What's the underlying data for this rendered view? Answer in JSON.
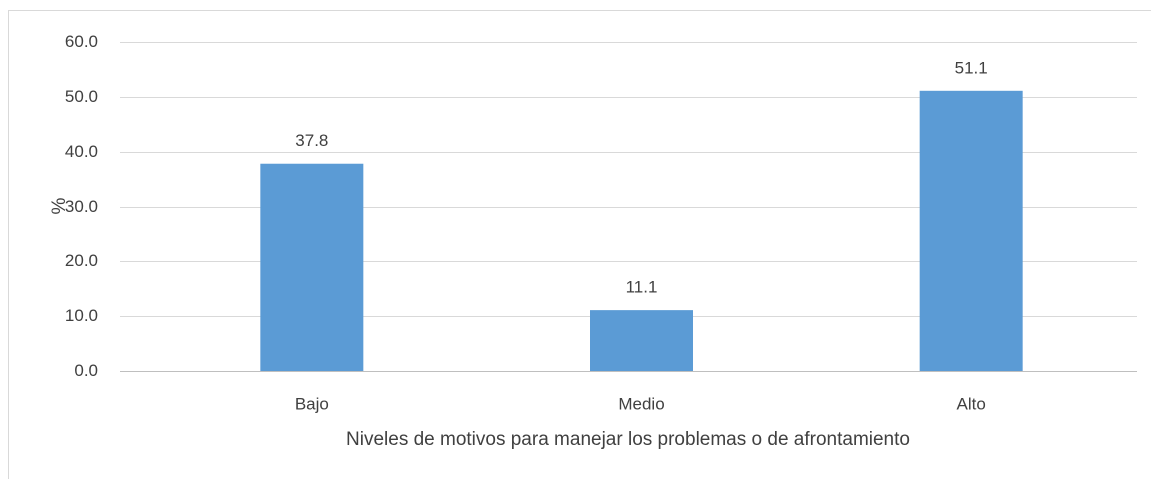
{
  "chart_data": {
    "type": "bar",
    "categories": [
      "Bajo",
      "Medio",
      "Alto"
    ],
    "values": [
      37.8,
      11.1,
      51.1
    ],
    "color": "#5b9bd5",
    "xlabel": "Niveles de motivos para manejar los problemas o de afrontamiento",
    "ylabel": "%",
    "ylim": [
      0,
      60
    ],
    "yticks": [
      {
        "value": 0,
        "label": "0.0"
      },
      {
        "value": 10,
        "label": "10.0"
      },
      {
        "value": 20,
        "label": "20.0"
      },
      {
        "value": 30,
        "label": "30.0"
      },
      {
        "value": 40,
        "label": "40.0"
      },
      {
        "value": 50,
        "label": "50.0"
      },
      {
        "value": 60,
        "label": "60.0"
      }
    ],
    "grid": true
  }
}
